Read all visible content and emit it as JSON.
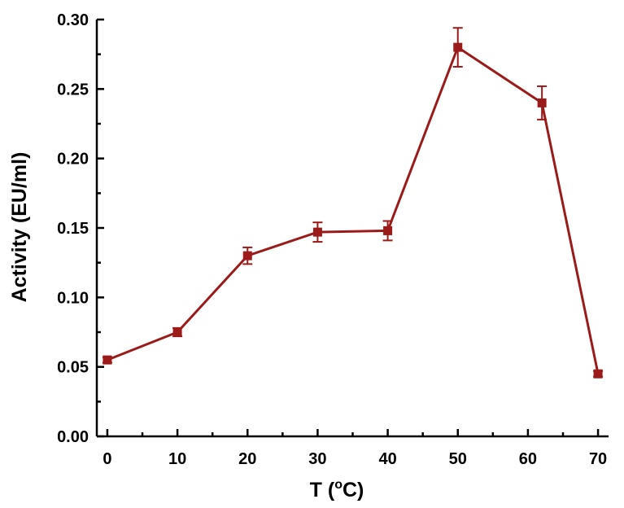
{
  "chart_data": {
    "type": "line",
    "xlabel": "T (",
    "xlabel_sup": "o",
    "xlabel_end": "C)",
    "ylabel": "Activity (EU/ml)",
    "xlim": [
      -1.5,
      71.5
    ],
    "ylim": [
      0,
      0.3
    ],
    "xticks": [
      "0",
      "10",
      "20",
      "30",
      "40",
      "50",
      "60",
      "70"
    ],
    "yticks": [
      "0.00",
      "0.05",
      "0.10",
      "0.15",
      "0.20",
      "0.25",
      "0.30"
    ],
    "grid": false,
    "color": "#9b1b1b",
    "series": [
      {
        "x": [
          0,
          10,
          20,
          30,
          40,
          50,
          62,
          70
        ],
        "y": [
          0.055,
          0.075,
          0.13,
          0.147,
          0.148,
          0.28,
          0.24,
          0.045
        ],
        "error": [
          0.002,
          0.003,
          0.006,
          0.007,
          0.007,
          0.014,
          0.012,
          0.002
        ]
      }
    ]
  }
}
